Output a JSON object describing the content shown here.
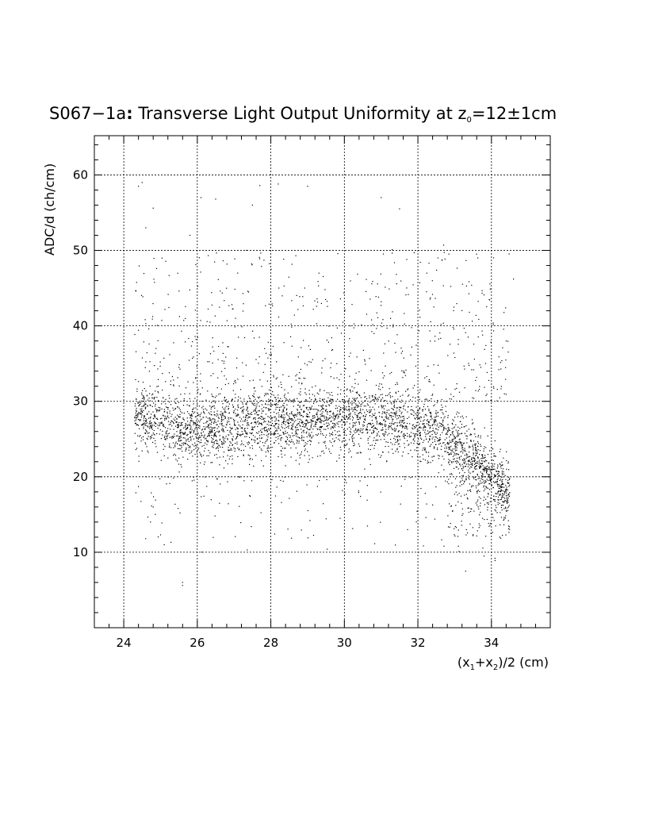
{
  "chart_data": {
    "type": "scatter",
    "title": {
      "main": "S067−1a",
      "colon": ":",
      "rest": " Transverse Light Output Uniformity at z",
      "sub": "0",
      "value": "=12±1cm"
    },
    "xlabel": {
      "p1": "(x",
      "s1": "1",
      "p2": "+x",
      "s2": "2",
      "p3": ")/2 (cm)"
    },
    "ylabel": "ADC/d (ch/cm)",
    "xlim": [
      23.2,
      35.6
    ],
    "ylim": [
      0,
      65.2
    ],
    "x_ticks": [
      24,
      26,
      28,
      30,
      32,
      34
    ],
    "y_ticks": [
      10,
      20,
      30,
      40,
      50,
      60
    ],
    "grid": true,
    "legend": "none",
    "point_color": "#000000",
    "x_range_points": [
      24.3,
      34.5
    ],
    "core_profile": [
      [
        24.5,
        28.0
      ],
      [
        25.0,
        27.5
      ],
      [
        25.5,
        26.2
      ],
      [
        26.0,
        26.0
      ],
      [
        27.0,
        26.8
      ],
      [
        28.0,
        27.0
      ],
      [
        29.0,
        27.2
      ],
      [
        30.0,
        27.5
      ],
      [
        31.0,
        27.6
      ],
      [
        32.0,
        26.8
      ],
      [
        32.5,
        26.0
      ],
      [
        33.0,
        25.0
      ],
      [
        33.5,
        23.0
      ],
      [
        34.0,
        20.0
      ],
      [
        34.5,
        18.0
      ]
    ],
    "core_spread": 3.3,
    "halo_upper": [
      30,
      50
    ],
    "halo_lower": [
      10,
      20
    ],
    "outliers": [
      [
        24.4,
        58.5
      ],
      [
        24.5,
        59.0
      ],
      [
        24.6,
        53.0
      ],
      [
        24.8,
        55.6
      ],
      [
        25.8,
        52.0
      ],
      [
        26.1,
        57.0
      ],
      [
        26.5,
        56.8
      ],
      [
        27.1,
        47.0
      ],
      [
        27.5,
        56.0
      ],
      [
        27.7,
        58.6
      ],
      [
        28.2,
        58.8
      ],
      [
        29.0,
        58.5
      ],
      [
        31.0,
        57.0
      ],
      [
        31.3,
        50.1
      ],
      [
        31.5,
        55.5
      ],
      [
        31.9,
        49.7
      ],
      [
        32.3,
        48.3
      ],
      [
        32.7,
        50.7
      ],
      [
        33.4,
        41.8
      ],
      [
        33.8,
        44.1
      ],
      [
        34.6,
        46.2
      ],
      [
        24.8,
        16.0
      ],
      [
        25.0,
        12.3
      ],
      [
        25.1,
        11.0
      ],
      [
        25.6,
        6.0
      ],
      [
        25.6,
        5.6
      ],
      [
        32.2,
        17.8
      ],
      [
        33.1,
        10.8
      ],
      [
        33.3,
        7.5
      ],
      [
        33.8,
        9.5
      ],
      [
        34.1,
        9.2
      ],
      [
        34.1,
        8.9
      ],
      [
        24.6,
        40.3
      ],
      [
        24.4,
        18.7
      ],
      [
        25.5,
        34.5
      ],
      [
        26.0,
        18.0
      ],
      [
        34.2,
        34.2
      ],
      [
        34.4,
        38.0
      ]
    ]
  }
}
